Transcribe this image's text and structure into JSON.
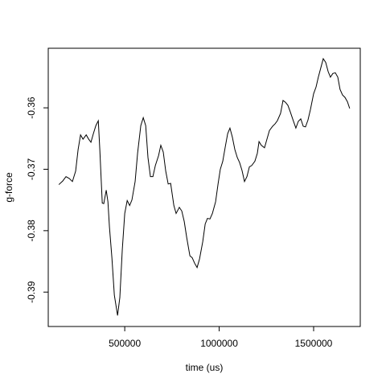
{
  "chart_data": {
    "type": "line",
    "xlabel": "time (us)",
    "ylabel": "g-force",
    "color": "#000000",
    "x": [
      151000,
      172000,
      189000,
      206000,
      223000,
      240000,
      253000,
      266000,
      279000,
      296000,
      309000,
      321000,
      334000,
      347000,
      360000,
      368000,
      381000,
      389000,
      402000,
      411000,
      419000,
      432000,
      445000,
      462000,
      474000,
      487000,
      500000,
      513000,
      526000,
      538000,
      555000,
      568000,
      585000,
      598000,
      611000,
      623000,
      636000,
      649000,
      662000,
      679000,
      691000,
      704000,
      717000,
      730000,
      743000,
      760000,
      772000,
      789000,
      802000,
      815000,
      828000,
      845000,
      857000,
      870000,
      883000,
      896000,
      913000,
      926000,
      938000,
      951000,
      964000,
      981000,
      994000,
      1006000,
      1019000,
      1032000,
      1045000,
      1057000,
      1070000,
      1083000,
      1096000,
      1108000,
      1121000,
      1134000,
      1147000,
      1160000,
      1172000,
      1189000,
      1202000,
      1211000,
      1223000,
      1240000,
      1253000,
      1266000,
      1283000,
      1296000,
      1308000,
      1325000,
      1338000,
      1351000,
      1364000,
      1377000,
      1389000,
      1406000,
      1419000,
      1432000,
      1445000,
      1457000,
      1470000,
      1483000,
      1500000,
      1513000,
      1525000,
      1538000,
      1551000,
      1564000,
      1577000,
      1589000,
      1602000,
      1615000,
      1628000,
      1640000,
      1653000,
      1666000,
      1679000,
      1691000
    ],
    "y": [
      -0.3725,
      -0.3719,
      -0.3712,
      -0.3715,
      -0.372,
      -0.3703,
      -0.3668,
      -0.3644,
      -0.3651,
      -0.3644,
      -0.3651,
      -0.3656,
      -0.3642,
      -0.3629,
      -0.3621,
      -0.3668,
      -0.3755,
      -0.3756,
      -0.3734,
      -0.3753,
      -0.3794,
      -0.3844,
      -0.3905,
      -0.3938,
      -0.3909,
      -0.3831,
      -0.3772,
      -0.3751,
      -0.3759,
      -0.375,
      -0.372,
      -0.3674,
      -0.3629,
      -0.3616,
      -0.3629,
      -0.3681,
      -0.3712,
      -0.3712,
      -0.3694,
      -0.3678,
      -0.3661,
      -0.3672,
      -0.3703,
      -0.3724,
      -0.3723,
      -0.3759,
      -0.3772,
      -0.3762,
      -0.3768,
      -0.3785,
      -0.3811,
      -0.3841,
      -0.3844,
      -0.3853,
      -0.386,
      -0.3846,
      -0.3818,
      -0.3789,
      -0.378,
      -0.3781,
      -0.3772,
      -0.3753,
      -0.3724,
      -0.37,
      -0.3687,
      -0.3664,
      -0.3642,
      -0.3633,
      -0.3648,
      -0.3668,
      -0.3681,
      -0.3689,
      -0.3702,
      -0.372,
      -0.3712,
      -0.3696,
      -0.3694,
      -0.3687,
      -0.3674,
      -0.3655,
      -0.3661,
      -0.3665,
      -0.3651,
      -0.3637,
      -0.363,
      -0.3626,
      -0.3621,
      -0.3609,
      -0.3588,
      -0.3591,
      -0.3596,
      -0.3607,
      -0.3618,
      -0.3633,
      -0.3622,
      -0.3618,
      -0.363,
      -0.3631,
      -0.362,
      -0.3603,
      -0.3577,
      -0.3566,
      -0.355,
      -0.3535,
      -0.352,
      -0.3526,
      -0.3541,
      -0.355,
      -0.3544,
      -0.3543,
      -0.355,
      -0.357,
      -0.3579,
      -0.3583,
      -0.359,
      -0.3601
    ],
    "xlim": [
      95000,
      1747000
    ],
    "ylim": [
      -0.3956,
      -0.3503
    ],
    "xticks": [
      500000,
      1000000,
      1500000
    ],
    "yticks": [
      -0.39,
      -0.38,
      -0.37,
      -0.36
    ]
  }
}
